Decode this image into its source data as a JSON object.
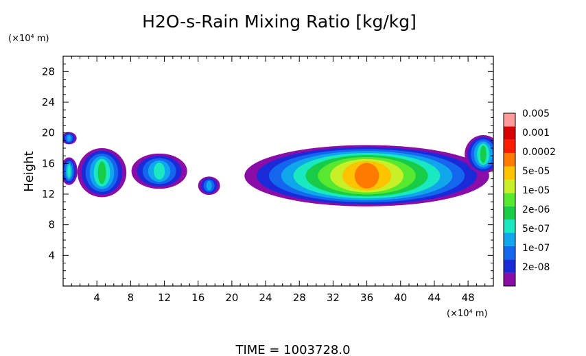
{
  "chart_data": {
    "type": "heatmap",
    "title": "H2O-s-Rain Mixing Ratio [kg/kg]",
    "ylabel": "Height",
    "y_scale_label": "(×10⁴ m)",
    "x_scale_label": "(×10⁴ m)",
    "footer": "TIME = 1003728.0",
    "xlim": [
      0,
      51
    ],
    "ylim": [
      0,
      30
    ],
    "x_ticks": [
      4,
      8,
      12,
      16,
      20,
      24,
      28,
      32,
      36,
      40,
      44,
      48
    ],
    "x_tick_labels": [
      "4",
      "8",
      "12",
      "16",
      "20",
      "24",
      "28",
      "32",
      "36",
      "40",
      "44",
      "48"
    ],
    "y_ticks": [
      4,
      8,
      12,
      16,
      20,
      24,
      28
    ],
    "y_tick_labels": [
      "4",
      "8",
      "12",
      "16",
      "20",
      "24",
      "28"
    ],
    "colorbar": {
      "colors": [
        "#8a0da8",
        "#1a2ad8",
        "#1566ef",
        "#0fa6ec",
        "#19e8c0",
        "#18cc48",
        "#58e830",
        "#c8f028",
        "#ffc400",
        "#ff7a00",
        "#ff1c00",
        "#d80000",
        "#ff9a9a"
      ],
      "labels": [
        "2e-08",
        "1e-07",
        "5e-07",
        "2e-06",
        "1e-05",
        "5e-05",
        "0.0002",
        "0.001",
        "0.005"
      ]
    },
    "regions": [
      {
        "id": "left-edge-upper",
        "cx": 0.7,
        "cy": 19.3,
        "rx": 0.9,
        "ry": 0.8,
        "peak": 4
      },
      {
        "id": "left-edge-lower",
        "cx": 0.7,
        "cy": 15.0,
        "rx": 1.0,
        "ry": 1.8,
        "peak": 5
      },
      {
        "id": "cell-4",
        "cx": 4.6,
        "cy": 14.8,
        "rx": 2.9,
        "ry": 3.2,
        "peak": 6
      },
      {
        "id": "cell-11",
        "cx": 11.4,
        "cy": 15.0,
        "rx": 3.3,
        "ry": 2.3,
        "peak": 5
      },
      {
        "id": "cell-17",
        "cx": 17.3,
        "cy": 13.1,
        "rx": 1.3,
        "ry": 1.2,
        "peak": 4
      },
      {
        "id": "main-band",
        "cx": 36.0,
        "cy": 14.4,
        "rx": 14.5,
        "ry": 4.0,
        "peak": 10
      },
      {
        "id": "right-edge",
        "cx": 49.8,
        "cy": 17.2,
        "rx": 2.2,
        "ry": 2.5,
        "peak": 6
      }
    ]
  }
}
